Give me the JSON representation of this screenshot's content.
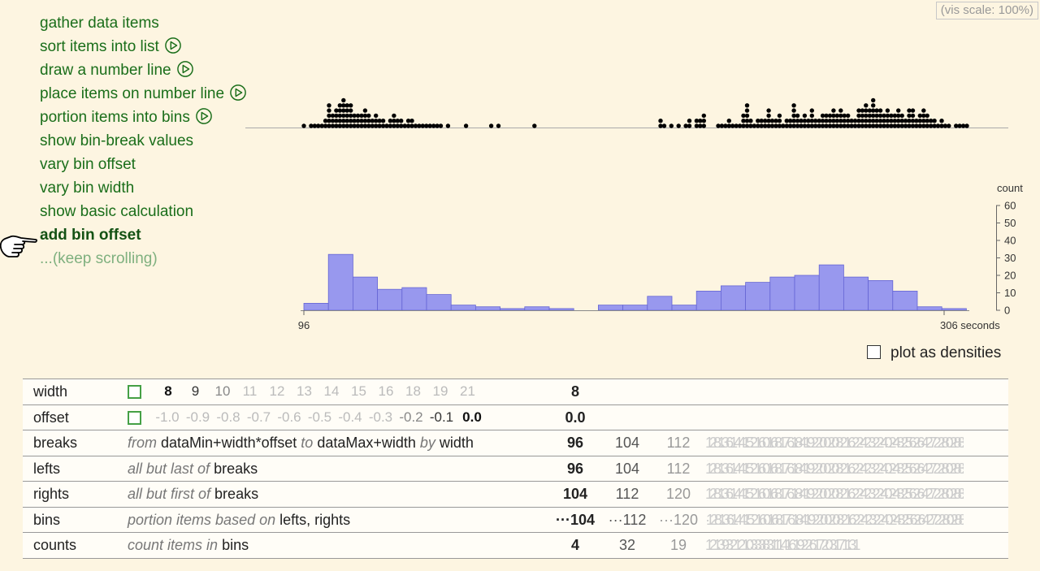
{
  "vis_scale": "(vis scale: 100%)",
  "steps": [
    {
      "label": "gather data items",
      "play": false,
      "state": "normal"
    },
    {
      "label": "sort items into list",
      "play": true,
      "state": "normal"
    },
    {
      "label": "draw a number line",
      "play": true,
      "state": "normal"
    },
    {
      "label": "place items on number line",
      "play": true,
      "state": "normal"
    },
    {
      "label": "portion items into bins",
      "play": true,
      "state": "normal"
    },
    {
      "label": "show bin-break values",
      "play": false,
      "state": "normal"
    },
    {
      "label": "vary bin offset",
      "play": false,
      "state": "normal"
    },
    {
      "label": "vary bin width",
      "play": false,
      "state": "normal"
    },
    {
      "label": "show basic calculation",
      "play": false,
      "state": "normal"
    },
    {
      "label": "add bin offset",
      "play": false,
      "state": "active"
    },
    {
      "label": "...(keep scrolling)",
      "play": false,
      "state": "muted"
    }
  ],
  "dot_plot": {
    "columns": [
      [
        1
      ],
      [
        0
      ],
      [
        1
      ],
      [
        1
      ],
      [
        1
      ],
      [
        1
      ],
      [
        2
      ],
      [
        5
      ],
      [
        3
      ],
      [
        4
      ],
      [
        5
      ],
      [
        6
      ],
      [
        5
      ],
      [
        5
      ],
      [
        3
      ],
      [
        3
      ],
      [
        3
      ],
      [
        4
      ],
      [
        3
      ],
      [
        2
      ],
      [
        3
      ],
      [
        2
      ],
      [
        2
      ],
      [
        1
      ],
      [
        2
      ],
      [
        3
      ],
      [
        2
      ],
      [
        2
      ],
      [
        1
      ],
      [
        2
      ],
      [
        2
      ],
      [
        1
      ],
      [
        1
      ],
      [
        1
      ],
      [
        1
      ],
      [
        1
      ],
      [
        1
      ],
      [
        1
      ],
      [
        1
      ],
      [
        0
      ],
      [
        1
      ],
      [
        0
      ],
      [
        0
      ],
      [
        0
      ],
      [
        0
      ],
      [
        1
      ],
      [
        0
      ],
      [
        0
      ],
      [
        0
      ],
      [
        0
      ],
      [
        0
      ],
      [
        0
      ],
      [
        1
      ],
      [
        0
      ],
      [
        1
      ],
      [
        0
      ],
      [
        0
      ],
      [
        0
      ],
      [
        0
      ],
      [
        0
      ],
      [
        0
      ],
      [
        0
      ],
      [
        0
      ],
      [
        0
      ],
      [
        1
      ],
      [
        0
      ],
      [
        0
      ],
      [
        0
      ],
      [
        0
      ],
      [
        0
      ],
      [
        0
      ],
      [
        0
      ],
      [
        0
      ],
      [
        0
      ],
      [
        0
      ],
      [
        0
      ],
      [
        0
      ],
      [
        0
      ],
      [
        0
      ],
      [
        0
      ],
      [
        0
      ],
      [
        0
      ],
      [
        0
      ],
      [
        0
      ],
      [
        0
      ],
      [
        0
      ],
      [
        0
      ],
      [
        0
      ],
      [
        0
      ],
      [
        0
      ],
      [
        0
      ],
      [
        0
      ],
      [
        0
      ],
      [
        0
      ],
      [
        0
      ],
      [
        0
      ],
      [
        0
      ],
      [
        0
      ],
      [
        0
      ],
      [
        2
      ],
      [
        1
      ],
      [
        0
      ],
      [
        1
      ],
      [
        0
      ],
      [
        1
      ],
      [
        0
      ],
      [
        1
      ],
      [
        2
      ],
      [
        0
      ],
      [
        2
      ],
      [
        2
      ],
      [
        3
      ],
      [
        0
      ],
      [
        0
      ],
      [
        0
      ],
      [
        1
      ],
      [
        1
      ],
      [
        1
      ],
      [
        2
      ],
      [
        1
      ],
      [
        1
      ],
      [
        1
      ],
      [
        3
      ],
      [
        5
      ],
      [
        2
      ],
      [
        1
      ],
      [
        2
      ],
      [
        2
      ],
      [
        2
      ],
      [
        4
      ],
      [
        2
      ],
      [
        2
      ],
      [
        3
      ],
      [
        1
      ],
      [
        2
      ],
      [
        2
      ],
      [
        5
      ],
      [
        3
      ],
      [
        2
      ],
      [
        3
      ],
      [
        2
      ],
      [
        4
      ],
      [
        2
      ],
      [
        2
      ],
      [
        3
      ],
      [
        3
      ],
      [
        3
      ],
      [
        4
      ],
      [
        3
      ],
      [
        4
      ],
      [
        3
      ],
      [
        3
      ],
      [
        2
      ],
      [
        2
      ],
      [
        4
      ],
      [
        4
      ],
      [
        5
      ],
      [
        4
      ],
      [
        6
      ],
      [
        4
      ],
      [
        4
      ],
      [
        3
      ],
      [
        4
      ],
      [
        3
      ],
      [
        3
      ],
      [
        4
      ],
      [
        3
      ],
      [
        2
      ],
      [
        4
      ],
      [
        4
      ],
      [
        2
      ],
      [
        3
      ],
      [
        4
      ],
      [
        3
      ],
      [
        2
      ],
      [
        2
      ],
      [
        1
      ],
      [
        2
      ],
      [
        1
      ],
      [
        1
      ],
      [
        0
      ],
      [
        1
      ],
      [
        1
      ],
      [
        1
      ],
      [
        1
      ]
    ],
    "x_start": 96,
    "x_end": 306
  },
  "histogram": {
    "axis_title": "count",
    "y_ticks": [
      "0",
      "10",
      "20",
      "30",
      "40",
      "50",
      "60"
    ],
    "x_labels": {
      "min": "96",
      "max": "306 seconds"
    },
    "counts": [
      4,
      32,
      19,
      12,
      13,
      9,
      3,
      2,
      1,
      2,
      1,
      0,
      3,
      3,
      8,
      3,
      11,
      14,
      16,
      19,
      20,
      26,
      19,
      17,
      11,
      2,
      1
    ],
    "bin_width": 8,
    "ymax": 60,
    "color": "#9898ee",
    "stroke": "#6565d4"
  },
  "density_toggle": {
    "label": "plot as densities",
    "checked": false
  },
  "calc": {
    "width": {
      "name": "width",
      "options": [
        "8",
        "9",
        "10",
        "11",
        "12",
        "13",
        "14",
        "15",
        "16",
        "18",
        "19",
        "21"
      ],
      "selected": "8",
      "value": "8"
    },
    "offset": {
      "name": "offset",
      "options": [
        "-1.0",
        "-0.9",
        "-0.8",
        "-0.7",
        "-0.6",
        "-0.5",
        "-0.4",
        "-0.3",
        "-0.2",
        "-0.1",
        "0.0"
      ],
      "selected": "0.0",
      "value": "0.0"
    },
    "breaks": {
      "name": "breaks",
      "desc_parts": [
        [
          "from ",
          "i"
        ],
        [
          "dataMin+width*offset",
          ""
        ],
        [
          " to ",
          "i"
        ],
        [
          "dataMax+width",
          ""
        ],
        [
          " by ",
          "i"
        ],
        [
          "width",
          ""
        ]
      ],
      "values": [
        "96",
        "104",
        "112"
      ],
      "ghost": "128136144152160168176184192200208216224232240248256264272280288296304312"
    },
    "lefts": {
      "name": "lefts",
      "desc_parts": [
        [
          "all but last of ",
          "i"
        ],
        [
          "breaks",
          ""
        ]
      ],
      "values": [
        "96",
        "104",
        "112"
      ],
      "ghost": "128136144152160168176184192200208216224232240248256264272280288296304"
    },
    "rights": {
      "name": "rights",
      "desc_parts": [
        [
          "all but first of ",
          "i"
        ],
        [
          "breaks",
          ""
        ]
      ],
      "values": [
        "104",
        "112",
        "120"
      ],
      "ghost": "128136144152160168176184192200208216224232240248256264272280288296304312"
    },
    "bins": {
      "name": "bins",
      "desc_parts": [
        [
          "portion items based on ",
          "i"
        ],
        [
          "lefts, rights",
          ""
        ]
      ],
      "values": [
        "···104",
        "···112",
        "···120"
      ],
      "ghost": "·128136144152160168176184192200208216224232240248256264272280288296304312"
    },
    "counts": {
      "name": "counts",
      "desc_parts": [
        [
          "count items in ",
          "i"
        ],
        [
          "bins",
          ""
        ]
      ],
      "values": [
        "4",
        "32",
        "19"
      ],
      "ghost": "12139321210333831114161922617203171131"
    }
  }
}
